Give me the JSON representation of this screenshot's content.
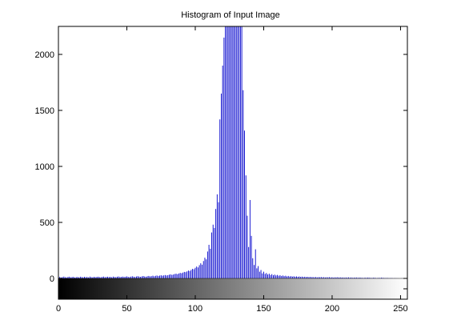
{
  "window": {
    "background": "#ffffff"
  },
  "chart_data": {
    "type": "bar",
    "title": "Histogram of Input Image",
    "xlabel": "",
    "ylabel": "",
    "xlim": [
      0,
      255
    ],
    "ylim": [
      0,
      2250
    ],
    "xticks": [
      0,
      50,
      100,
      150,
      200,
      250
    ],
    "yticks": [
      0,
      500,
      1000,
      1500,
      2000
    ],
    "grid": false,
    "bar_color": "#0000cc",
    "colorbar": {
      "orientation": "horizontal",
      "colormap": "gray",
      "range": [
        0,
        255
      ]
    },
    "series": [
      {
        "bins": [
          0,
          1,
          2,
          3,
          4,
          5,
          6,
          7,
          8,
          9,
          10,
          11,
          12,
          13,
          14,
          15,
          16,
          17,
          18,
          19,
          20,
          21,
          22,
          23,
          24,
          25,
          26,
          27,
          28,
          29,
          30,
          31,
          32,
          33,
          34,
          35,
          36,
          37,
          38,
          39,
          40,
          41,
          42,
          43,
          44,
          45,
          46,
          47,
          48,
          49,
          50,
          51,
          52,
          53,
          54,
          55,
          56,
          57,
          58,
          59,
          60,
          61,
          62,
          63,
          64,
          65,
          66,
          67,
          68,
          69,
          70,
          71,
          72,
          73,
          74,
          75,
          76,
          77,
          78,
          79,
          80,
          81,
          82,
          83,
          84,
          85,
          86,
          87,
          88,
          89,
          90,
          91,
          92,
          93,
          94,
          95,
          96,
          97,
          98,
          99,
          100,
          101,
          102,
          103,
          104,
          105,
          106,
          107,
          108,
          109,
          110,
          111,
          112,
          113,
          114,
          115,
          116,
          117,
          118,
          119,
          120,
          121,
          122,
          123,
          124,
          125,
          126,
          127,
          128,
          129,
          130,
          131,
          132,
          133,
          134,
          135,
          136,
          137,
          138,
          139,
          140,
          141,
          142,
          143,
          144,
          145,
          146,
          147,
          148,
          149,
          150,
          151,
          152,
          153,
          154,
          155,
          156,
          157,
          158,
          159,
          160,
          161,
          162,
          163,
          164,
          165,
          166,
          167,
          168,
          169,
          170,
          171,
          172,
          173,
          174,
          175,
          176,
          177,
          178,
          179,
          180,
          181,
          182,
          183,
          184,
          185,
          186,
          187,
          188,
          189,
          190,
          191,
          192,
          193,
          194,
          195,
          196,
          197,
          198,
          199,
          200,
          201,
          202,
          203,
          204,
          205,
          206,
          207,
          208,
          209,
          210,
          211,
          212,
          213,
          214,
          215,
          216,
          217,
          218,
          219,
          220,
          221,
          222,
          223,
          224,
          225,
          226,
          227,
          228,
          229,
          230,
          231,
          232,
          233,
          234,
          235,
          236,
          237,
          238,
          239,
          240,
          241,
          242,
          243,
          244,
          245,
          246,
          247,
          248,
          249,
          250,
          251,
          252,
          253,
          254,
          255
        ],
        "counts": [
          10,
          14,
          8,
          12,
          16,
          11,
          9,
          13,
          15,
          10,
          12,
          14,
          8,
          11,
          13,
          9,
          15,
          12,
          10,
          14,
          11,
          13,
          9,
          16,
          12,
          10,
          14,
          11,
          13,
          15,
          12,
          10,
          14,
          16,
          11,
          13,
          15,
          12,
          14,
          10,
          16,
          13,
          11,
          15,
          17,
          12,
          14,
          16,
          13,
          15,
          18,
          14,
          12,
          16,
          19,
          15,
          13,
          17,
          20,
          16,
          14,
          18,
          21,
          17,
          15,
          19,
          22,
          18,
          20,
          24,
          19,
          23,
          26,
          21,
          25,
          28,
          24,
          27,
          30,
          26,
          29,
          33,
          36,
          31,
          35,
          39,
          42,
          38,
          44,
          49,
          46,
          52,
          58,
          55,
          63,
          70,
          66,
          76,
          85,
          82,
          95,
          106,
          98,
          118,
          135,
          122,
          155,
          185,
          170,
          240,
          300,
          265,
          410,
          480,
          450,
          620,
          750,
          680,
          1420,
          1650,
          1900,
          2150,
          2250,
          2250,
          2250,
          2250,
          2250,
          2250,
          2250,
          2250,
          2250,
          2250,
          2250,
          2250,
          2250,
          1680,
          1320,
          920,
          560,
          280,
          700,
          380,
          180,
          120,
          260,
          90,
          110,
          60,
          75,
          45,
          60,
          40,
          48,
          35,
          42,
          30,
          38,
          28,
          34,
          26,
          31,
          24,
          28,
          22,
          26,
          20,
          24,
          18,
          22,
          17,
          20,
          16,
          19,
          15,
          18,
          14,
          17,
          13,
          16,
          12,
          15,
          12,
          14,
          11,
          13,
          11,
          12,
          10,
          12,
          9,
          11,
          10,
          12,
          9,
          11,
          8,
          10,
          9,
          11,
          8,
          10,
          7,
          9,
          8,
          10,
          7,
          9,
          7,
          8,
          6,
          8,
          7,
          9,
          6,
          8,
          5,
          7,
          6,
          8,
          5,
          7,
          6,
          5,
          4,
          6,
          5,
          7,
          6,
          5,
          4,
          6,
          5,
          4,
          3,
          5,
          4,
          6,
          5,
          4,
          3,
          4,
          3,
          2,
          3,
          2,
          1,
          2,
          1,
          1,
          0,
          0,
          1,
          0,
          0,
          0,
          0
        ]
      }
    ]
  }
}
